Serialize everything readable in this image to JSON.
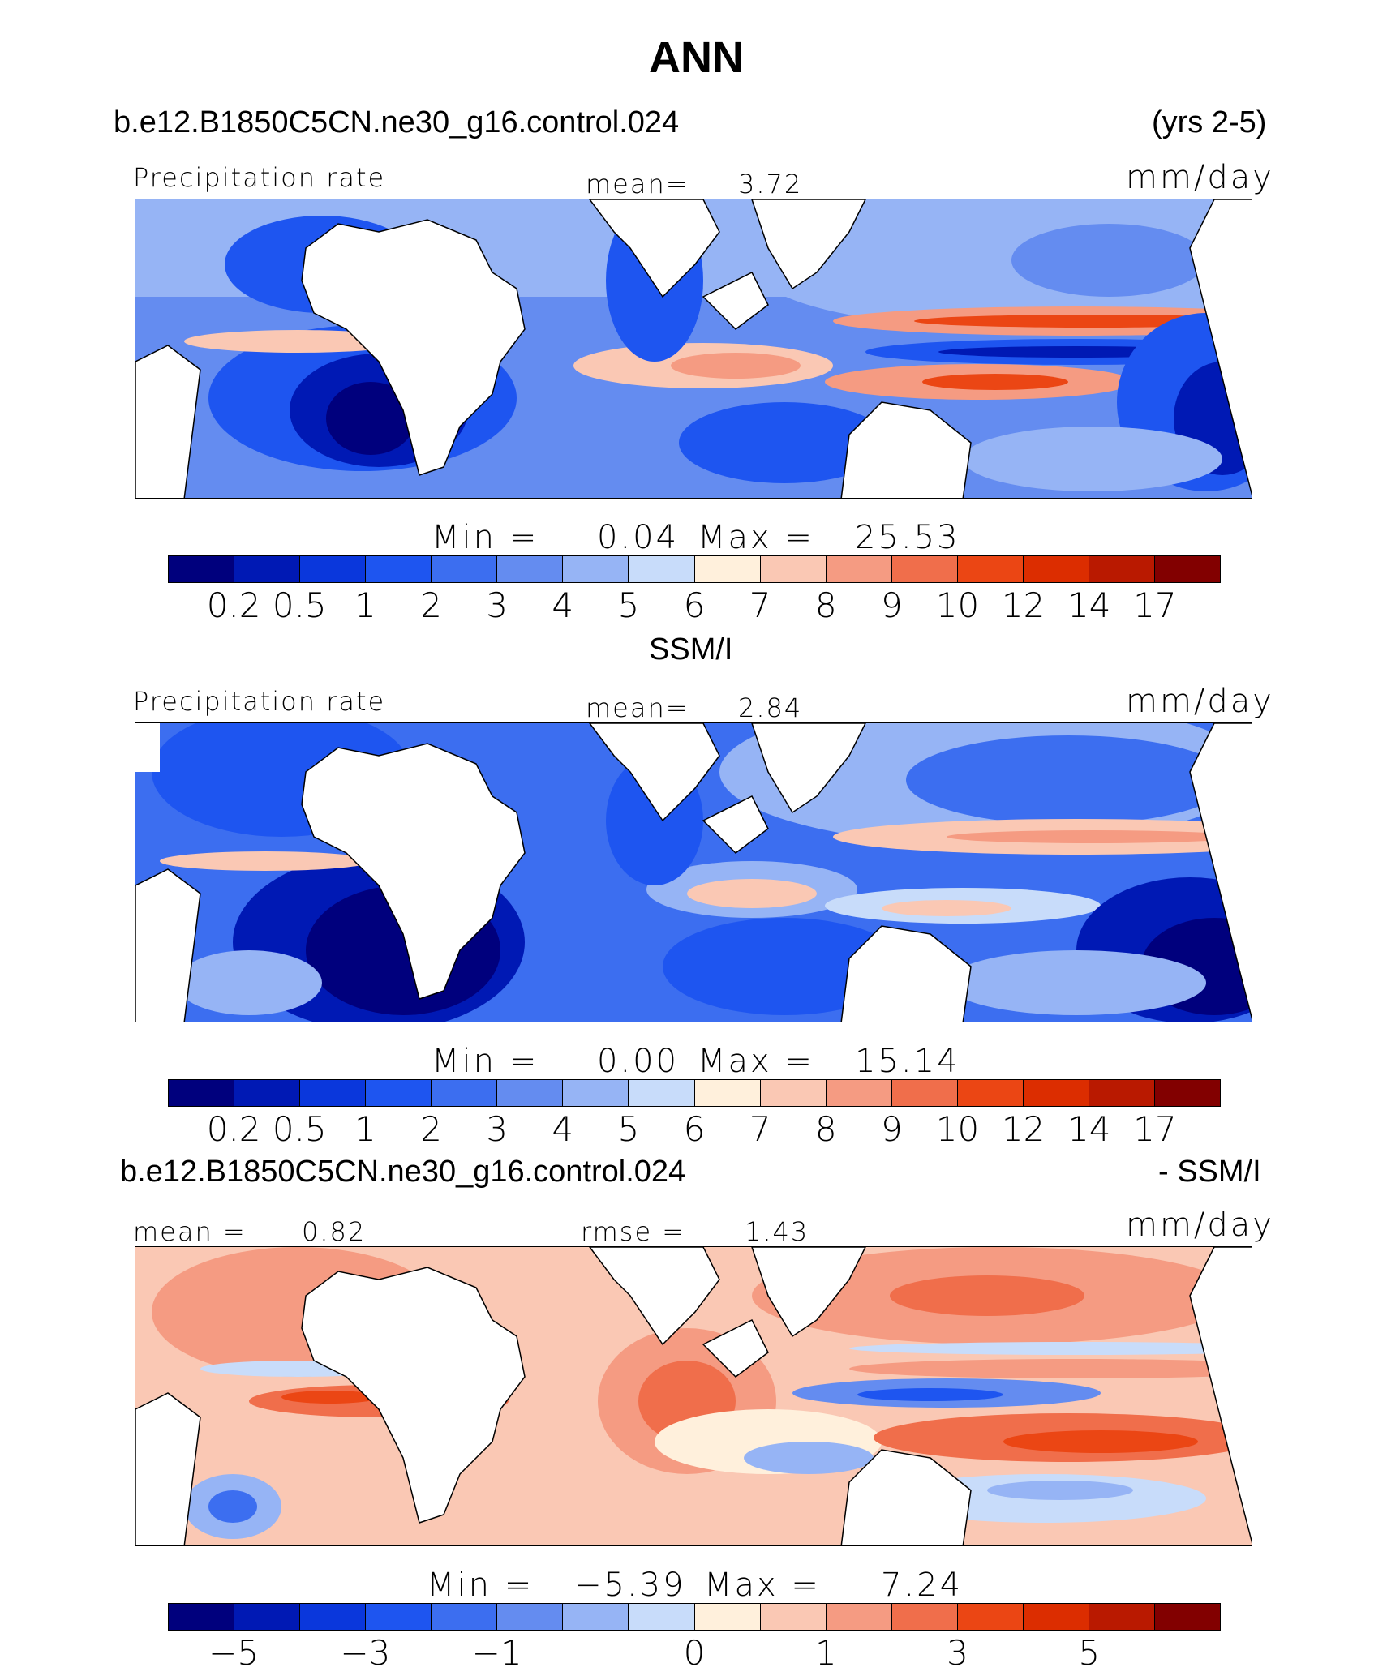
{
  "header": {
    "title": "ANN",
    "case_name": "b.e12.B1850C5CN.ne30_g16.control.024",
    "years": "(yrs 2-5)"
  },
  "panels": [
    {
      "label": "Precipitation rate",
      "stat_label": "mean=",
      "stat_value": "3.72",
      "units": "mm/day",
      "minmax_min_label": "Min  =",
      "min_value": "0.04",
      "minmax_max_label": "Max  =",
      "max_value": "25.53",
      "ticks": [
        "0.2",
        "0.5",
        "1",
        "2",
        "3",
        "4",
        "5",
        "6",
        "7",
        "8",
        "9",
        "10",
        "12",
        "14",
        "17"
      ]
    },
    {
      "heading": "SSM/I",
      "label": "Precipitation rate",
      "stat_label": "mean=",
      "stat_value": "2.84",
      "units": "mm/day",
      "minmax_min_label": "Min  =",
      "min_value": "0.00",
      "minmax_max_label": "Max  =",
      "max_value": "15.14",
      "ticks": [
        "0.2",
        "0.5",
        "1",
        "2",
        "3",
        "4",
        "5",
        "6",
        "7",
        "8",
        "9",
        "10",
        "12",
        "14",
        "17"
      ]
    },
    {
      "heading": "b.e12.B1850C5CN.ne30_g16.control.024",
      "heading_right": "- SSM/I",
      "mean_label": "mean  =",
      "mean_value": "0.82",
      "rmse_label": "rmse  =",
      "rmse_value": "1.43",
      "units": "mm/day",
      "minmax_min_label": "Min  =",
      "min_value": "−5.39",
      "minmax_max_label": "Max  =",
      "max_value": "7.24",
      "ticks": [
        "−5",
        "−3",
        "−1",
        "0",
        "1",
        "3",
        "5"
      ]
    }
  ],
  "colors": {
    "scale": [
      "#00007d",
      "#0019b4",
      "#0a37dc",
      "#1e55f0",
      "#3c6ef0",
      "#648cf0",
      "#96b4f5",
      "#c8dcfa",
      "#fff0dc",
      "#fac8b4",
      "#f59b82",
      "#f06e4b",
      "#eb4614",
      "#dc2d00",
      "#b91900",
      "#820000"
    ],
    "land": "#ffffff",
    "coast": "#000000"
  },
  "chart_data": [
    {
      "type": "heatmap",
      "title": "b.e12.B1850C5CN.ne30_g16.control.024 (yrs 2-5)",
      "variable": "Precipitation rate",
      "units": "mm/day",
      "mean": 3.72,
      "min": 0.04,
      "max": 25.53,
      "contour_levels": [
        0.2,
        0.5,
        1,
        2,
        3,
        4,
        5,
        6,
        7,
        8,
        9,
        10,
        12,
        14,
        17
      ]
    },
    {
      "type": "heatmap",
      "title": "SSM/I",
      "variable": "Precipitation rate",
      "units": "mm/day",
      "mean": 2.84,
      "min": 0.0,
      "max": 15.14,
      "contour_levels": [
        0.2,
        0.5,
        1,
        2,
        3,
        4,
        5,
        6,
        7,
        8,
        9,
        10,
        12,
        14,
        17
      ]
    },
    {
      "type": "heatmap",
      "title": "b.e12.B1850C5CN.ne30_g16.control.024 - SSM/I",
      "units": "mm/day",
      "mean": 0.82,
      "rmse": 1.43,
      "min": -5.39,
      "max": 7.24,
      "contour_levels": [
        -5,
        -4,
        -3,
        -2,
        -1,
        -0.5,
        0,
        0.5,
        1,
        2,
        3,
        4,
        5,
        6,
        7
      ],
      "labeled_ticks": [
        -5,
        -3,
        -1,
        0,
        1,
        3,
        5
      ]
    }
  ]
}
